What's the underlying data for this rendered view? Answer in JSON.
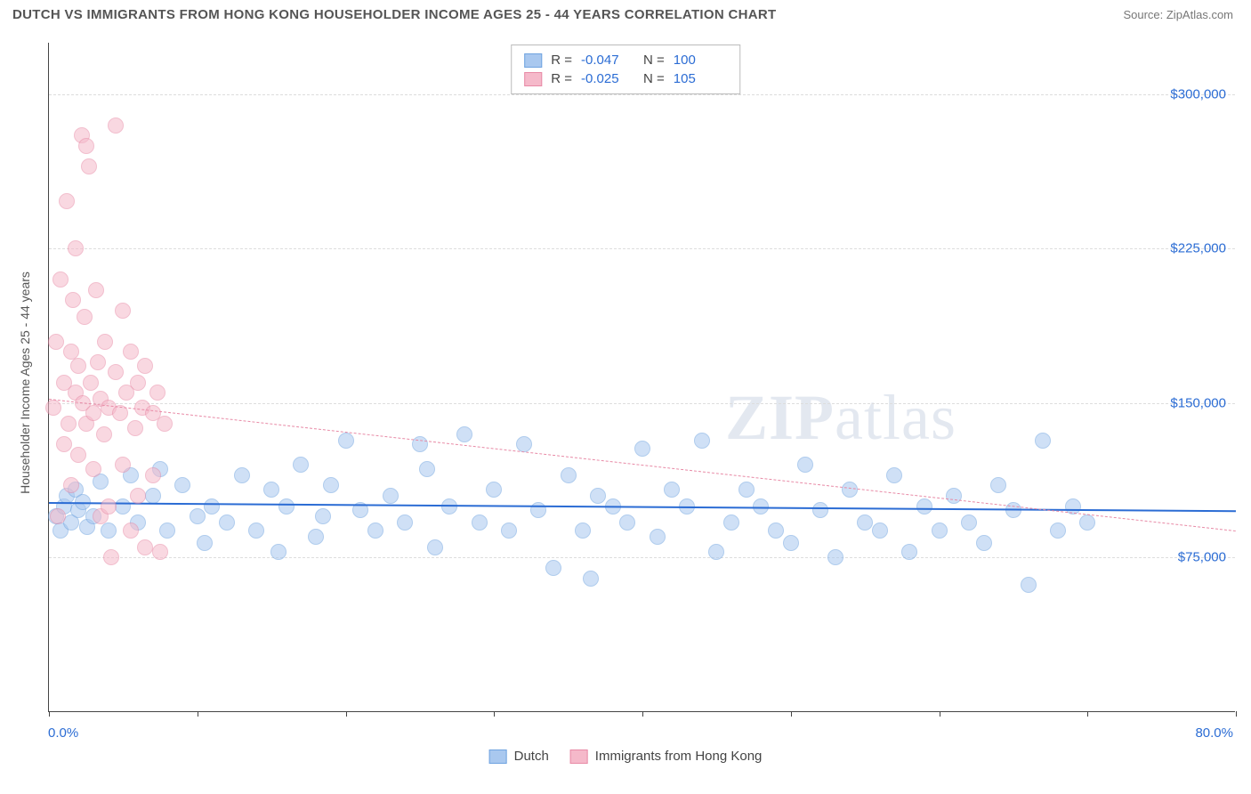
{
  "title": "DUTCH VS IMMIGRANTS FROM HONG KONG HOUSEHOLDER INCOME AGES 25 - 44 YEARS CORRELATION CHART",
  "source": "Source: ZipAtlas.com",
  "y_axis_label": "Householder Income Ages 25 - 44 years",
  "x_min_label": "0.0%",
  "x_max_label": "80.0%",
  "watermark": "ZIPatlas",
  "chart": {
    "type": "scatter",
    "xlim": [
      0,
      80
    ],
    "ylim": [
      0,
      325000
    ],
    "y_ticks": [
      75000,
      150000,
      225000,
      300000
    ],
    "y_tick_labels": [
      "$75,000",
      "$150,000",
      "$225,000",
      "$300,000"
    ],
    "x_tick_positions": [
      0,
      10,
      20,
      30,
      40,
      50,
      60,
      70,
      80
    ],
    "grid_color": "#dddddd",
    "background_color": "#ffffff",
    "marker_radius": 9,
    "marker_opacity": 0.55,
    "series": [
      {
        "name": "Dutch",
        "color_fill": "#a9c8ef",
        "color_stroke": "#6fa3e0",
        "R": "-0.047",
        "N": "100",
        "trend": {
          "x1": 0,
          "y1": 102000,
          "x2": 80,
          "y2": 98000,
          "color": "#2b6cd4",
          "width": 2.5,
          "dash": false
        },
        "points": [
          [
            0.5,
            95000
          ],
          [
            0.8,
            88000
          ],
          [
            1.0,
            100000
          ],
          [
            1.2,
            105000
          ],
          [
            1.5,
            92000
          ],
          [
            1.8,
            108000
          ],
          [
            2.0,
            98000
          ],
          [
            2.3,
            102000
          ],
          [
            2.6,
            90000
          ],
          [
            3.0,
            95000
          ],
          [
            3.5,
            112000
          ],
          [
            4.0,
            88000
          ],
          [
            5.0,
            100000
          ],
          [
            5.5,
            115000
          ],
          [
            6.0,
            92000
          ],
          [
            7.0,
            105000
          ],
          [
            7.5,
            118000
          ],
          [
            8.0,
            88000
          ],
          [
            9.0,
            110000
          ],
          [
            10.0,
            95000
          ],
          [
            10.5,
            82000
          ],
          [
            11.0,
            100000
          ],
          [
            12.0,
            92000
          ],
          [
            13.0,
            115000
          ],
          [
            14.0,
            88000
          ],
          [
            15.0,
            108000
          ],
          [
            15.5,
            78000
          ],
          [
            16.0,
            100000
          ],
          [
            17.0,
            120000
          ],
          [
            18.0,
            85000
          ],
          [
            18.5,
            95000
          ],
          [
            19.0,
            110000
          ],
          [
            20.0,
            132000
          ],
          [
            21.0,
            98000
          ],
          [
            22.0,
            88000
          ],
          [
            23.0,
            105000
          ],
          [
            24.0,
            92000
          ],
          [
            25.0,
            130000
          ],
          [
            25.5,
            118000
          ],
          [
            26.0,
            80000
          ],
          [
            27.0,
            100000
          ],
          [
            28.0,
            135000
          ],
          [
            29.0,
            92000
          ],
          [
            30.0,
            108000
          ],
          [
            31.0,
            88000
          ],
          [
            32.0,
            130000
          ],
          [
            33.0,
            98000
          ],
          [
            34.0,
            70000
          ],
          [
            35.0,
            115000
          ],
          [
            36.0,
            88000
          ],
          [
            36.5,
            65000
          ],
          [
            37.0,
            105000
          ],
          [
            38.0,
            100000
          ],
          [
            39.0,
            92000
          ],
          [
            40.0,
            128000
          ],
          [
            41.0,
            85000
          ],
          [
            42.0,
            108000
          ],
          [
            43.0,
            100000
          ],
          [
            44.0,
            132000
          ],
          [
            45.0,
            78000
          ],
          [
            46.0,
            92000
          ],
          [
            47.0,
            108000
          ],
          [
            48.0,
            100000
          ],
          [
            49.0,
            88000
          ],
          [
            50.0,
            82000
          ],
          [
            51.0,
            120000
          ],
          [
            52.0,
            98000
          ],
          [
            53.0,
            75000
          ],
          [
            54.0,
            108000
          ],
          [
            55.0,
            92000
          ],
          [
            56.0,
            88000
          ],
          [
            57.0,
            115000
          ],
          [
            58.0,
            78000
          ],
          [
            59.0,
            100000
          ],
          [
            60.0,
            88000
          ],
          [
            61.0,
            105000
          ],
          [
            62.0,
            92000
          ],
          [
            63.0,
            82000
          ],
          [
            64.0,
            110000
          ],
          [
            65.0,
            98000
          ],
          [
            66.0,
            62000
          ],
          [
            67.0,
            132000
          ],
          [
            68.0,
            88000
          ],
          [
            69.0,
            100000
          ],
          [
            70.0,
            92000
          ]
        ]
      },
      {
        "name": "Immigrants from Hong Kong",
        "color_fill": "#f5b9ca",
        "color_stroke": "#e88aa6",
        "R": "-0.025",
        "N": "105",
        "trend": {
          "x1": 0,
          "y1": 152000,
          "x2": 80,
          "y2": 88000,
          "color": "#e88aa6",
          "width": 1.2,
          "dash": true
        },
        "points": [
          [
            0.3,
            148000
          ],
          [
            0.5,
            180000
          ],
          [
            0.6,
            95000
          ],
          [
            0.8,
            210000
          ],
          [
            1.0,
            160000
          ],
          [
            1.0,
            130000
          ],
          [
            1.2,
            248000
          ],
          [
            1.3,
            140000
          ],
          [
            1.5,
            175000
          ],
          [
            1.5,
            110000
          ],
          [
            1.6,
            200000
          ],
          [
            1.8,
            225000
          ],
          [
            1.8,
            155000
          ],
          [
            2.0,
            168000
          ],
          [
            2.0,
            125000
          ],
          [
            2.2,
            280000
          ],
          [
            2.3,
            150000
          ],
          [
            2.4,
            192000
          ],
          [
            2.5,
            275000
          ],
          [
            2.5,
            140000
          ],
          [
            2.7,
            265000
          ],
          [
            2.8,
            160000
          ],
          [
            3.0,
            145000
          ],
          [
            3.0,
            118000
          ],
          [
            3.2,
            205000
          ],
          [
            3.3,
            170000
          ],
          [
            3.5,
            95000
          ],
          [
            3.5,
            152000
          ],
          [
            3.7,
            135000
          ],
          [
            3.8,
            180000
          ],
          [
            4.0,
            148000
          ],
          [
            4.0,
            100000
          ],
          [
            4.2,
            75000
          ],
          [
            4.5,
            285000
          ],
          [
            4.5,
            165000
          ],
          [
            4.8,
            145000
          ],
          [
            5.0,
            120000
          ],
          [
            5.0,
            195000
          ],
          [
            5.2,
            155000
          ],
          [
            5.5,
            88000
          ],
          [
            5.5,
            175000
          ],
          [
            5.8,
            138000
          ],
          [
            6.0,
            160000
          ],
          [
            6.0,
            105000
          ],
          [
            6.3,
            148000
          ],
          [
            6.5,
            80000
          ],
          [
            6.5,
            168000
          ],
          [
            7.0,
            145000
          ],
          [
            7.0,
            115000
          ],
          [
            7.3,
            155000
          ],
          [
            7.5,
            78000
          ],
          [
            7.8,
            140000
          ]
        ]
      }
    ]
  },
  "bottom_legend": [
    {
      "label": "Dutch",
      "fill": "#a9c8ef",
      "stroke": "#6fa3e0"
    },
    {
      "label": "Immigrants from Hong Kong",
      "fill": "#f5b9ca",
      "stroke": "#e88aa6"
    }
  ]
}
